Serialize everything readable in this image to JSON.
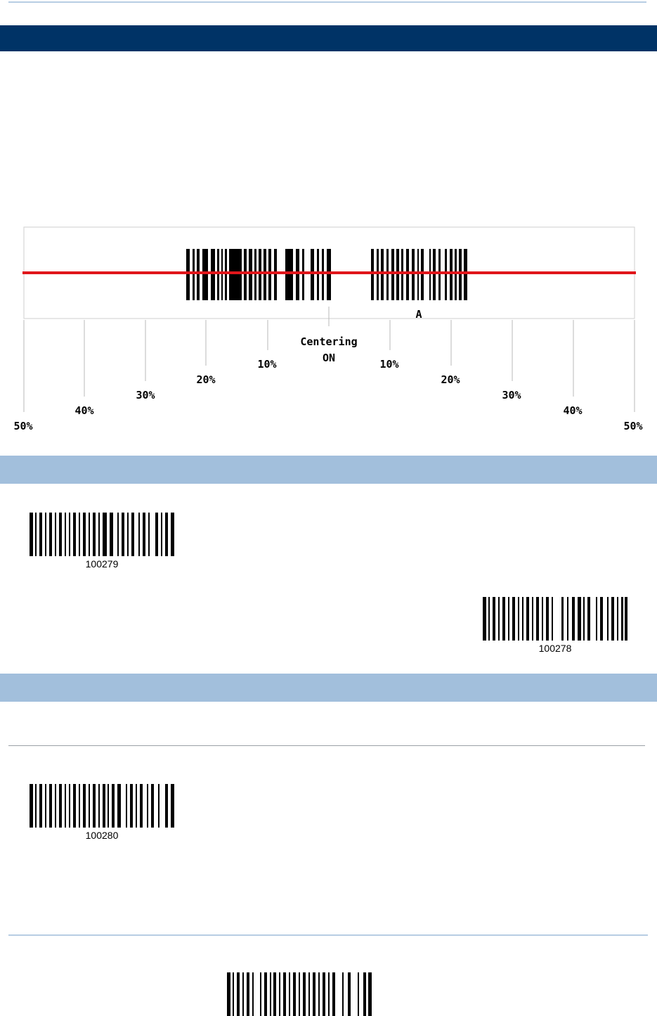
{
  "diagram": {
    "center_label_line1": "Centering",
    "center_label_line2": "ON",
    "barcode_char": "A",
    "left_labels": [
      "10%",
      "20%",
      "30%",
      "40%",
      "50%"
    ],
    "right_labels": [
      "10%",
      "20%",
      "30%",
      "40%",
      "50%"
    ],
    "colors": {
      "scan_line": "#e0161b",
      "header_dark": "#003366",
      "header_light": "#a2bfdc"
    }
  },
  "barcodes": {
    "b1": {
      "code": "100279"
    },
    "b2": {
      "code": "100278"
    },
    "b3": {
      "code": "100280"
    }
  }
}
